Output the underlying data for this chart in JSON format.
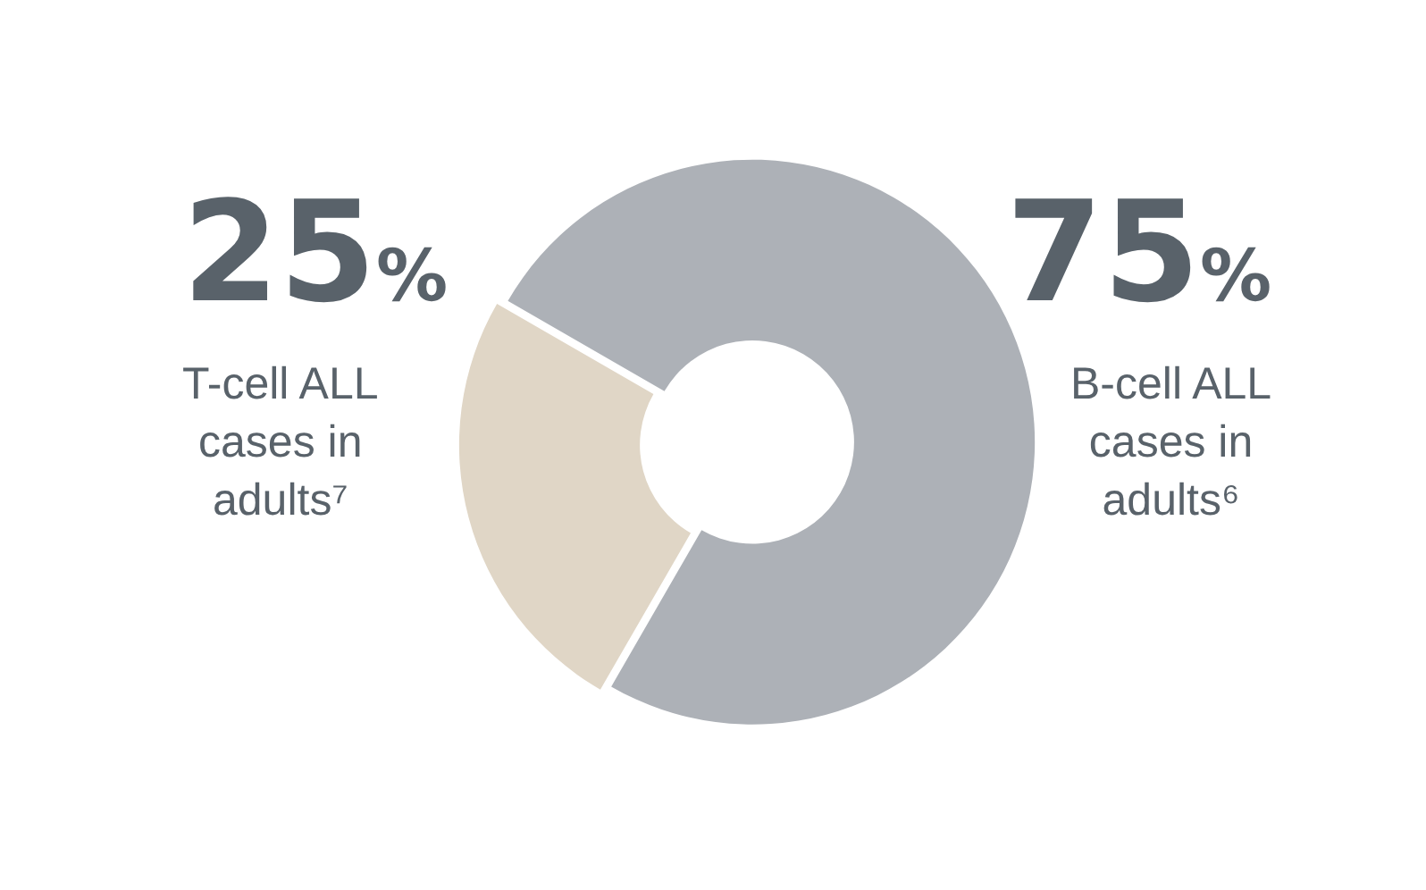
{
  "chart_data": {
    "type": "donut",
    "categories": [
      "T-cell ALL cases in adults⁷",
      "B-cell ALL cases in adults⁶"
    ],
    "values": [
      25,
      75
    ],
    "colors": [
      "#e0d6c6",
      "#adb1b7"
    ],
    "value_labels": [
      "25%",
      "75%"
    ],
    "legend": false
  }
}
